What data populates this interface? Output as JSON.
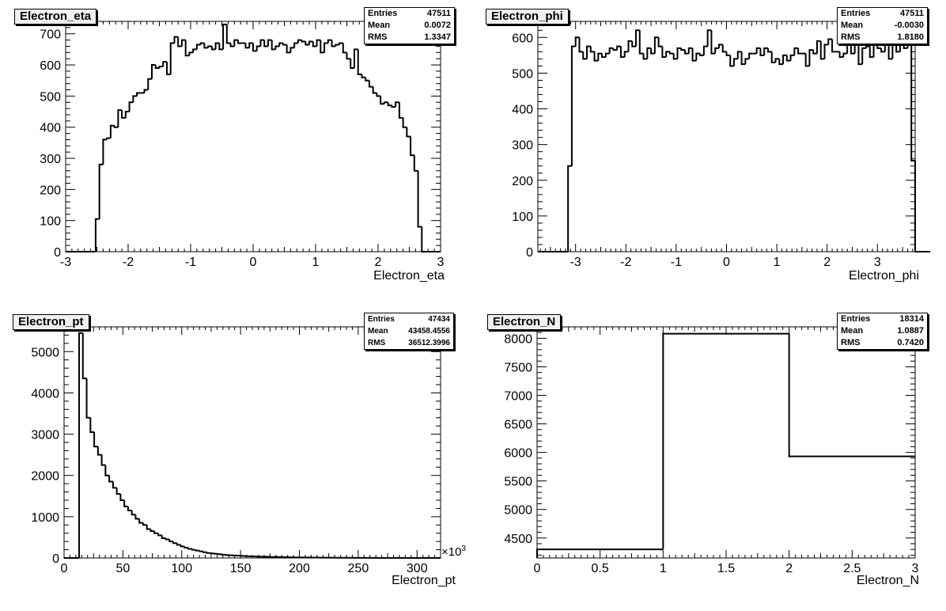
{
  "chart_data": [
    {
      "type": "bar",
      "title": "Electron_eta",
      "xlabel": "Electron_eta",
      "ylabel": "",
      "xlim": [
        -3,
        3
      ],
      "ylim": [
        0,
        740
      ],
      "x_ticks": [
        "-3",
        "-2",
        "-1",
        "0",
        "1",
        "2",
        "3"
      ],
      "y_ticks": [
        "0",
        "100",
        "200",
        "300",
        "400",
        "500",
        "600",
        "700"
      ],
      "stats": {
        "entries_label": "Entries",
        "entries": "47511",
        "mean_label": "Mean",
        "mean": "0.0072",
        "rms_label": "RMS",
        "rms": "1.3347"
      },
      "bins": {
        "start": -3,
        "width": 0.06,
        "values": [
          0,
          0,
          0,
          0,
          0,
          0,
          0,
          0,
          105,
          280,
          360,
          365,
          405,
          400,
          455,
          430,
          450,
          480,
          500,
          510,
          510,
          520,
          555,
          600,
          590,
          595,
          610,
          570,
          670,
          690,
          660,
          680,
          630,
          640,
          650,
          665,
          670,
          655,
          660,
          650,
          670,
          650,
          730,
          670,
          660,
          680,
          670,
          670,
          655,
          670,
          645,
          660,
          680,
          660,
          680,
          650,
          660,
          670,
          665,
          640,
          655,
          670,
          680,
          675,
          665,
          675,
          660,
          680,
          640,
          670,
          680,
          660,
          665,
          670,
          640,
          620,
          590,
          650,
          570,
          560,
          550,
          530,
          510,
          500,
          475,
          480,
          470,
          465,
          480,
          430,
          400,
          370,
          310,
          260,
          80,
          0,
          0,
          0,
          0,
          0
        ]
      }
    },
    {
      "type": "bar",
      "title": "Electron_phi",
      "xlabel": "Electron_phi",
      "ylabel": "",
      "xlim": [
        -3.75,
        3.75
      ],
      "ylim": [
        0,
        645
      ],
      "x_ticks": [
        "-3",
        "-2",
        "-1",
        "0",
        "1",
        "2",
        "3"
      ],
      "y_ticks": [
        "0",
        "100",
        "200",
        "300",
        "400",
        "500",
        "600"
      ],
      "stats": {
        "entries_label": "Entries",
        "entries": "47511",
        "mean_label": "Mean",
        "mean": "-0.0030",
        "rms_label": "RMS",
        "rms": "1.8180"
      },
      "bins": {
        "start": -3.75,
        "width": 0.075,
        "values": [
          0,
          0,
          0,
          0,
          0,
          0,
          0,
          0,
          240,
          575,
          600,
          560,
          540,
          575,
          560,
          535,
          555,
          545,
          555,
          570,
          565,
          575,
          545,
          560,
          590,
          575,
          620,
          555,
          540,
          570,
          555,
          600,
          575,
          545,
          560,
          555,
          540,
          570,
          565,
          555,
          570,
          535,
          555,
          550,
          575,
          620,
          555,
          570,
          580,
          560,
          550,
          520,
          540,
          560,
          525,
          540,
          555,
          555,
          570,
          550,
          570,
          560,
          530,
          540,
          525,
          550,
          535,
          550,
          570,
          555,
          555,
          520,
          565,
          555,
          590,
          540,
          580,
          595,
          560,
          560,
          545,
          555,
          580,
          555,
          590,
          525,
          570,
          575,
          545,
          595,
          570,
          560,
          590,
          540,
          600,
          560,
          590,
          570,
          595,
          255,
          0,
          0,
          0,
          0
        ]
      }
    },
    {
      "type": "bar",
      "title": "Electron_pt",
      "xlabel": "Electron_pt",
      "ylabel": "",
      "x_multiplier": "×10",
      "x_multiplier_exp": "3",
      "xlim": [
        0,
        320
      ],
      "ylim": [
        0,
        5600
      ],
      "x_ticks": [
        "0",
        "50",
        "100",
        "150",
        "200",
        "250",
        "300"
      ],
      "y_ticks": [
        "0",
        "1000",
        "2000",
        "3000",
        "4000",
        "5000"
      ],
      "stats": {
        "entries_label": "Entries",
        "entries": "47434",
        "mean_label": "Mean",
        "mean": "43458.4556",
        "rms_label": "RMS",
        "rms": "36512.3996"
      },
      "bins": {
        "start": 0,
        "width": 3.2,
        "values": [
          0,
          0,
          0,
          0,
          5450,
          4350,
          3400,
          3050,
          2700,
          2500,
          2250,
          2000,
          1850,
          1700,
          1550,
          1400,
          1250,
          1150,
          1050,
          950,
          850,
          800,
          700,
          650,
          600,
          550,
          480,
          450,
          400,
          360,
          320,
          280,
          250,
          220,
          200,
          180,
          160,
          140,
          120,
          110,
          100,
          90,
          80,
          70,
          65,
          60,
          55,
          50,
          45,
          40,
          38,
          35,
          32,
          30,
          28,
          25,
          23,
          21,
          19,
          18,
          16,
          15,
          14,
          13,
          12,
          11,
          10,
          9,
          8,
          8,
          7,
          6,
          6,
          5,
          5,
          4,
          4,
          3,
          3,
          3,
          2,
          2,
          2,
          2,
          1,
          1,
          1,
          1,
          1,
          1,
          1,
          1,
          0,
          0,
          0,
          0,
          0,
          0,
          0,
          0
        ]
      }
    },
    {
      "type": "bar",
      "title": "Electron_N",
      "xlabel": "Electron_N",
      "ylabel": "",
      "xlim": [
        0,
        3
      ],
      "ylim": [
        4150,
        8200
      ],
      "x_ticks": [
        "0",
        "0.5",
        "1",
        "1.5",
        "2",
        "2.5",
        "3"
      ],
      "y_ticks": [
        "4500",
        "5000",
        "5500",
        "6000",
        "6500",
        "7000",
        "7500",
        "8000"
      ],
      "stats": {
        "entries_label": "Entries",
        "entries": "18314",
        "mean_label": "Mean",
        "mean": "1.0887",
        "rms_label": "RMS",
        "rms": "0.7420"
      },
      "bins": {
        "start": 0,
        "width": 1,
        "values": [
          4300,
          8080,
          5930
        ]
      }
    }
  ],
  "colors": {
    "line": "#000000",
    "title_fill": "#f0f0f0",
    "stats_fill": "#ffffff"
  }
}
